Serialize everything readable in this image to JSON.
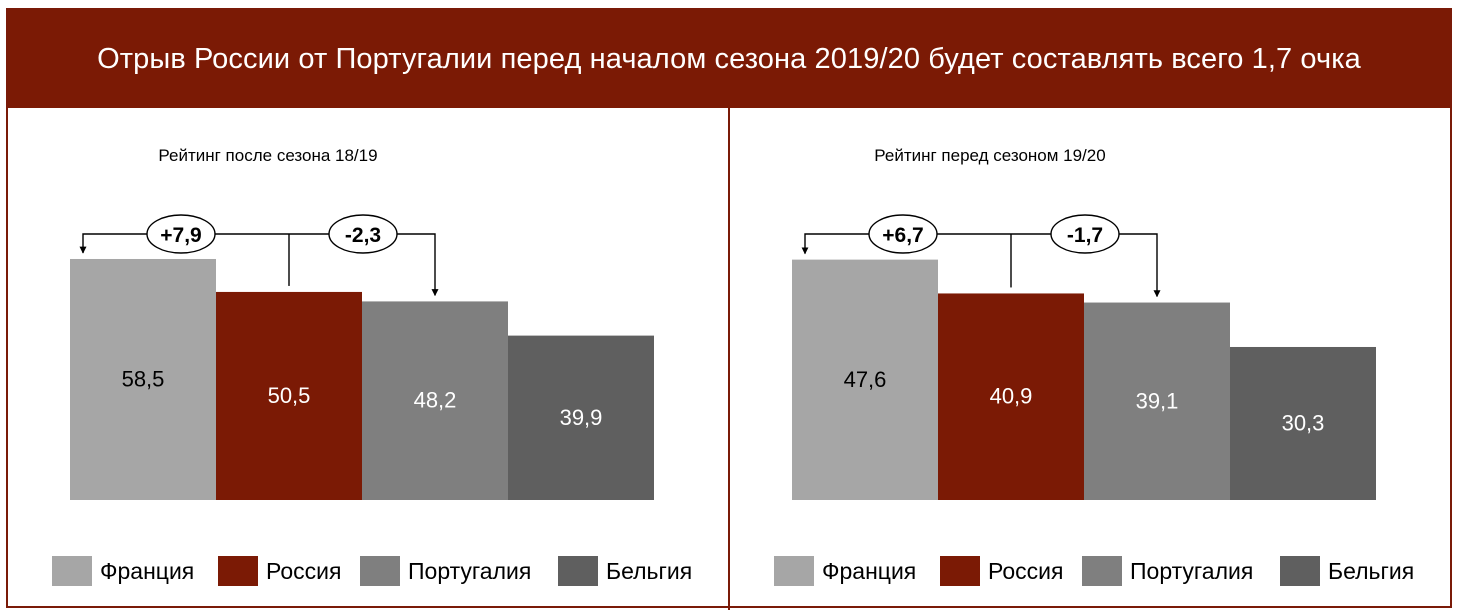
{
  "title": "Отрыв России от Португалии перед началом сезона 2019/20 будет составлять всего 1,7 очка",
  "colors": {
    "header": "#7b1a05",
    "France": "#a6a6a6",
    "Russia": "#7b1a05",
    "Portugal": "#7f7f7f",
    "Belgium": "#5f5f5f"
  },
  "chart_data": [
    {
      "type": "bar",
      "title": "Рейтинг после сезона 18/19",
      "categories": [
        "Франция",
        "Россия",
        "Португалия",
        "Бельгия"
      ],
      "values": [
        58.5,
        50.5,
        48.2,
        39.9
      ],
      "value_labels": [
        "58,5",
        "50,5",
        "48,2",
        "39,9"
      ],
      "annotations": [
        {
          "label": "+7,9",
          "from": "Россия",
          "to": "Франция"
        },
        {
          "label": "-2,3",
          "from": "Россия",
          "to": "Португалия"
        }
      ],
      "legend": [
        "Франция",
        "Россия",
        "Португалия",
        "Бельгия"
      ],
      "legend_position": "bottom",
      "grid": false
    },
    {
      "type": "bar",
      "title": "Рейтинг перед сезоном 19/20",
      "categories": [
        "Франция",
        "Россия",
        "Португалия",
        "Бельгия"
      ],
      "values": [
        47.6,
        40.9,
        39.1,
        30.3
      ],
      "value_labels": [
        "47,6",
        "40,9",
        "39,1",
        "30,3"
      ],
      "annotations": [
        {
          "label": "+6,7",
          "from": "Россия",
          "to": "Франция"
        },
        {
          "label": "-1,7",
          "from": "Россия",
          "to": "Португалия"
        }
      ],
      "legend": [
        "Франция",
        "Россия",
        "Португалия",
        "Бельгия"
      ],
      "legend_position": "bottom",
      "grid": false
    }
  ]
}
